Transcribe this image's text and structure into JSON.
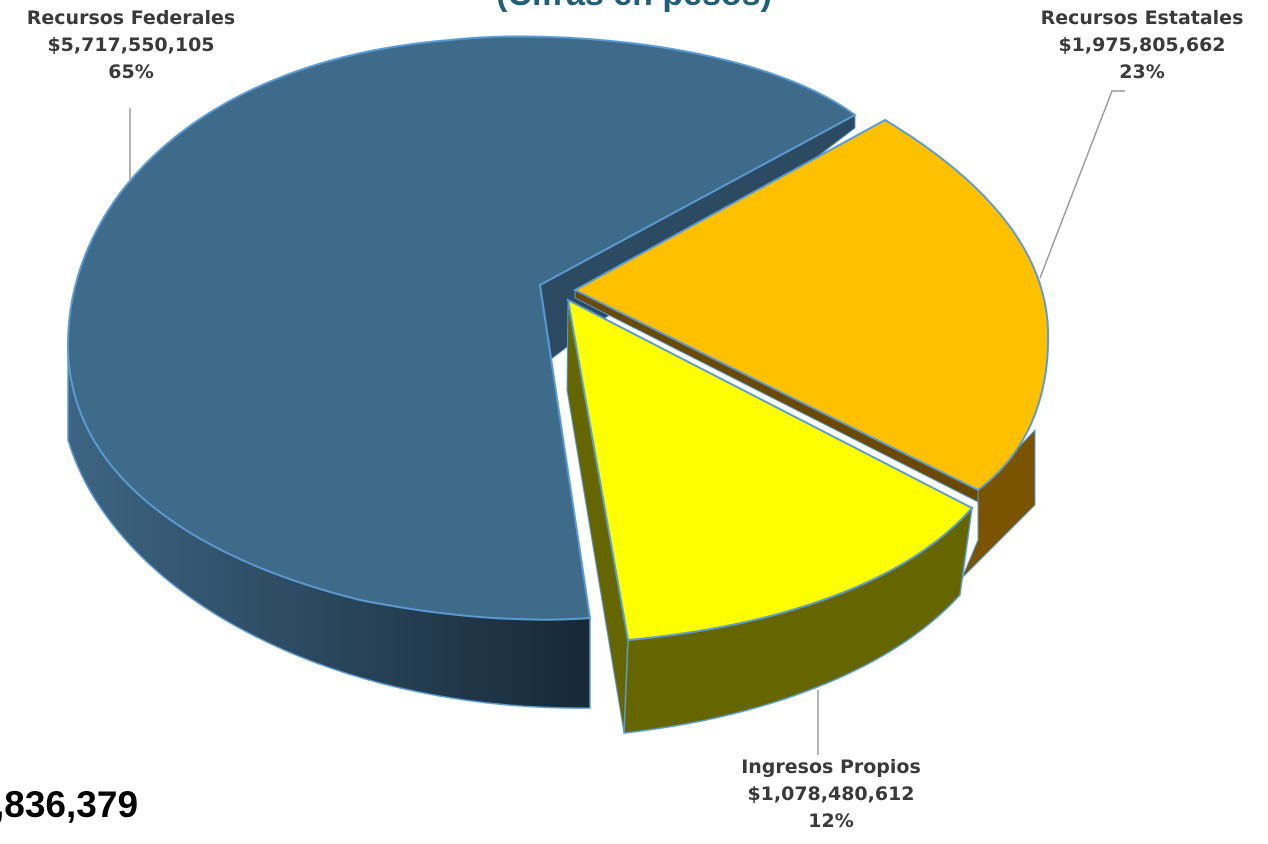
{
  "chart_data": {
    "type": "pie",
    "title": "(Cifras en pesos)",
    "categories": [
      "Recursos Federales",
      "Recursos Estatales",
      "Ingresos Propios"
    ],
    "values": [
      5717550105,
      1975805662,
      1078480612
    ],
    "value_labels": [
      "$5,717,550,105",
      "$1,975,805,662",
      "$1,078,480,612"
    ],
    "percent_labels": [
      "65%",
      "23%",
      "12%"
    ],
    "colors": [
      "#3f6b8a",
      "#ffc000",
      "#ffff00"
    ],
    "side_colors": [
      "#2a4d66",
      "#7a5400",
      "#666600"
    ],
    "edge_color": "#5b9bd5",
    "style": "3d-exploded",
    "total_text": ",836,379"
  }
}
